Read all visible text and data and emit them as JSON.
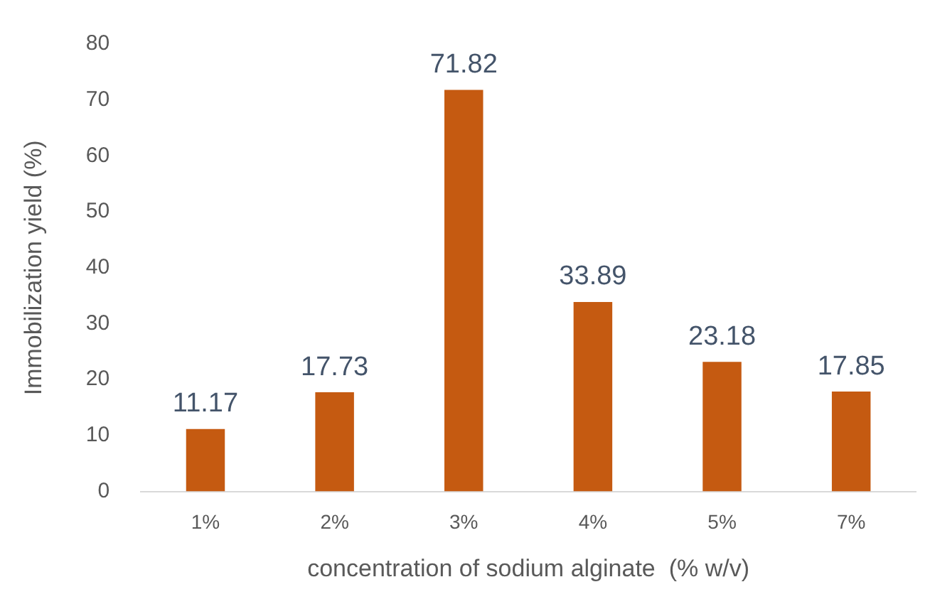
{
  "chart_data": {
    "type": "bar",
    "categories": [
      "1%",
      "2%",
      "3%",
      "4%",
      "5%",
      "7%"
    ],
    "values": [
      11.17,
      17.73,
      71.82,
      33.89,
      23.18,
      17.85
    ],
    "color": "#c55a11",
    "xlabel": "concentration of sodium alginate  (% w/v)",
    "ylabel": "Immobilization yield (%)",
    "ylim": [
      0,
      80
    ],
    "yticks": [
      0,
      10,
      20,
      30,
      40,
      50,
      60,
      70,
      80
    ],
    "grid": false,
    "legend": false,
    "data_labels": true
  }
}
